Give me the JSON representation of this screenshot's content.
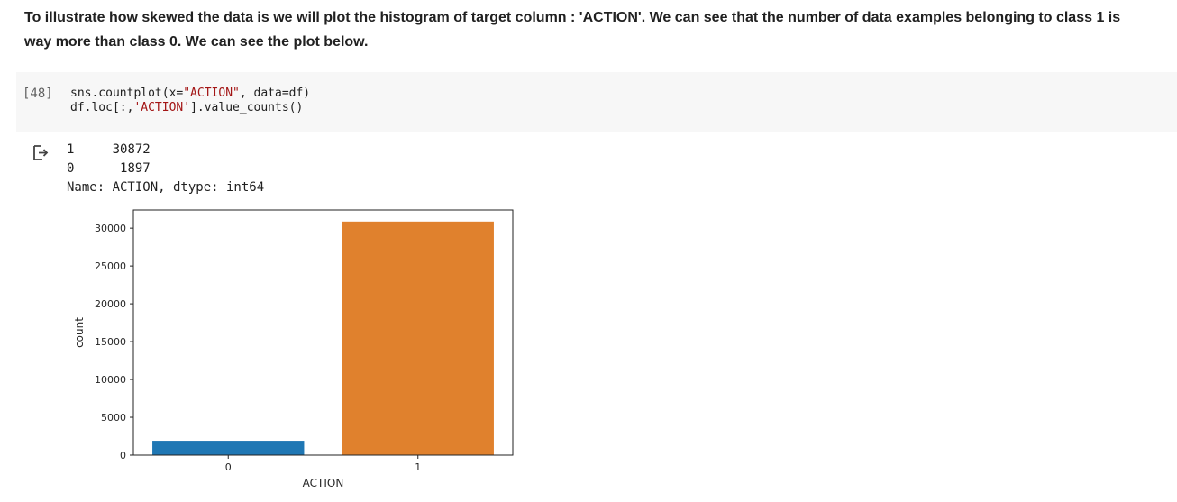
{
  "markdown": {
    "line1": "To illustrate how skewed the data is we will plot the histogram of target column : 'ACTION'. We can see that the number of data examples belonging to class 1 is",
    "line2": "way more than class 0. We can see the plot below."
  },
  "code_cell": {
    "execution_count": "[48]",
    "line1_a": "sns.countplot(x=",
    "line1_b": "\"ACTION\"",
    "line1_c": ", data=df)",
    "line2_a": "df.loc[:,",
    "line2_b": "'ACTION'",
    "line2_c": "].value_counts()"
  },
  "output": {
    "icon": "output-arrow-icon",
    "rows": [
      {
        "index": "1",
        "value": "30872"
      },
      {
        "index": "0",
        "value": " 1897"
      }
    ],
    "footer": "Name: ACTION, dtype: int64"
  },
  "chart_data": {
    "type": "bar",
    "categories": [
      "0",
      "1"
    ],
    "values": [
      1897,
      30872
    ],
    "colors": [
      "#1f77b4",
      "#e0812d"
    ],
    "xlabel": "ACTION",
    "ylabel": "count",
    "ylim": [
      0,
      32400
    ],
    "yticks": [
      0,
      5000,
      10000,
      15000,
      20000,
      25000,
      30000
    ],
    "grid": false
  }
}
